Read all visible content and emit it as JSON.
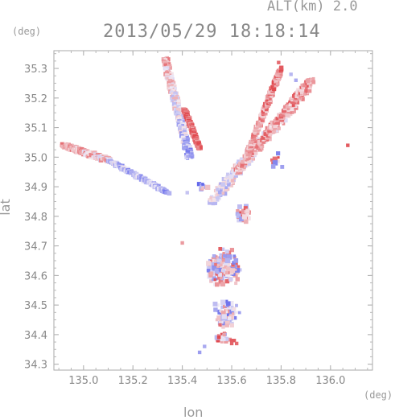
{
  "header": {
    "alt_label": "ALT(km) 2.0",
    "datetime": "2013/05/29 18:18:14"
  },
  "axes": {
    "y_unit": "(deg)",
    "x_unit": "(deg)",
    "x_label": "lon",
    "y_label": "lat"
  },
  "chart_data": {
    "type": "scatter",
    "title": "2013/05/29 18:18:14",
    "subtitle": "ALT(km) 2.0",
    "xlabel": "lon",
    "ylabel": "lat",
    "x_unit": "(deg)",
    "y_unit": "(deg)",
    "xlim": [
      134.88,
      136.17
    ],
    "ylim": [
      34.28,
      35.36
    ],
    "x_ticks": [
      135.0,
      135.2,
      135.4,
      135.6,
      135.8,
      136.0
    ],
    "x_tick_labels": [
      "135.0",
      "135.2",
      "135.4",
      "135.6",
      "135.8",
      "136.0"
    ],
    "y_ticks": [
      34.3,
      34.4,
      34.5,
      34.6,
      34.7,
      34.8,
      34.9,
      35.0,
      35.1,
      35.2,
      35.3
    ],
    "y_tick_labels": [
      "34.3",
      "34.4",
      "34.5",
      "34.6",
      "34.7",
      "34.8",
      "34.9",
      "35.0",
      "35.1",
      "35.2",
      "35.3"
    ],
    "grid": false,
    "colors": {
      "positive": "#ee5c5c",
      "negative": "#7b7bee",
      "neutral": "#f0e8ee",
      "axis": "#a0a0a0"
    },
    "series": [
      {
        "color_group": "mixed",
        "segments": [
          {
            "from": [
              134.92,
              35.04
            ],
            "to": [
              135.1,
              34.99
            ],
            "width": 0.02,
            "v_from": 0.45,
            "v_to": 0.2
          },
          {
            "from": [
              135.1,
              34.99
            ],
            "to": [
              135.34,
              34.88
            ],
            "width": 0.012,
            "v_from": -0.3,
            "v_to": -0.5
          },
          {
            "from": [
              135.33,
              35.33
            ],
            "to": [
              135.43,
              35.0
            ],
            "width": 0.02,
            "v_from": 0.4,
            "v_to": -0.5
          },
          {
            "from": [
              135.41,
              35.16
            ],
            "to": [
              135.47,
              35.03
            ],
            "width": 0.01,
            "v_from": 0.9,
            "v_to": 0.9
          },
          {
            "from": [
              135.52,
              34.85
            ],
            "to": [
              135.9,
              35.23
            ],
            "width": 0.03,
            "v_from": -0.2,
            "v_to": 0.5
          },
          {
            "from": [
              135.62,
              34.95
            ],
            "to": [
              135.92,
              35.26
            ],
            "width": 0.022,
            "v_from": 0.35,
            "v_to": 0.55
          },
          {
            "from": [
              135.66,
              35.0
            ],
            "to": [
              135.8,
              35.3
            ],
            "width": 0.014,
            "v_from": 0.3,
            "v_to": 0.7
          }
        ]
      },
      {
        "color_group": "clusters",
        "clusters": [
          {
            "center": [
              135.65,
              34.81
            ],
            "spread": [
              0.03,
              0.03
            ],
            "count": 35,
            "bias": 0.3
          },
          {
            "center": [
              135.56,
              34.63
            ],
            "spread": [
              0.075,
              0.065
            ],
            "count": 170,
            "bias": 0.05
          },
          {
            "center": [
              135.58,
              34.47
            ],
            "spread": [
              0.055,
              0.05
            ],
            "count": 80,
            "bias": -0.1
          },
          {
            "center": [
              135.56,
              34.39
            ],
            "spread": [
              0.04,
              0.02
            ],
            "count": 30,
            "bias": 0.2
          },
          {
            "center": [
              135.48,
              34.9
            ],
            "spread": [
              0.025,
              0.02
            ],
            "count": 12,
            "bias": -0.4
          },
          {
            "center": [
              135.78,
              34.99
            ],
            "spread": [
              0.03,
              0.03
            ],
            "count": 10,
            "bias": 0.1
          }
        ]
      },
      {
        "color_group": "points",
        "points": [
          [
            135.6,
            34.38,
            0.9
          ],
          [
            135.61,
            34.38,
            0.9
          ],
          [
            135.62,
            34.37,
            0.8
          ],
          [
            135.6,
            34.37,
            0.85
          ],
          [
            136.07,
            35.04,
            0.9
          ],
          [
            135.79,
            35.32,
            0.8
          ],
          [
            135.47,
            34.34,
            -0.6
          ],
          [
            135.49,
            34.36,
            -0.5
          ],
          [
            135.86,
            35.26,
            -0.5
          ],
          [
            135.84,
            35.28,
            -0.4
          ],
          [
            135.4,
            34.71,
            0.5
          ],
          [
            135.42,
            34.88,
            -0.3
          ]
        ]
      }
    ]
  }
}
